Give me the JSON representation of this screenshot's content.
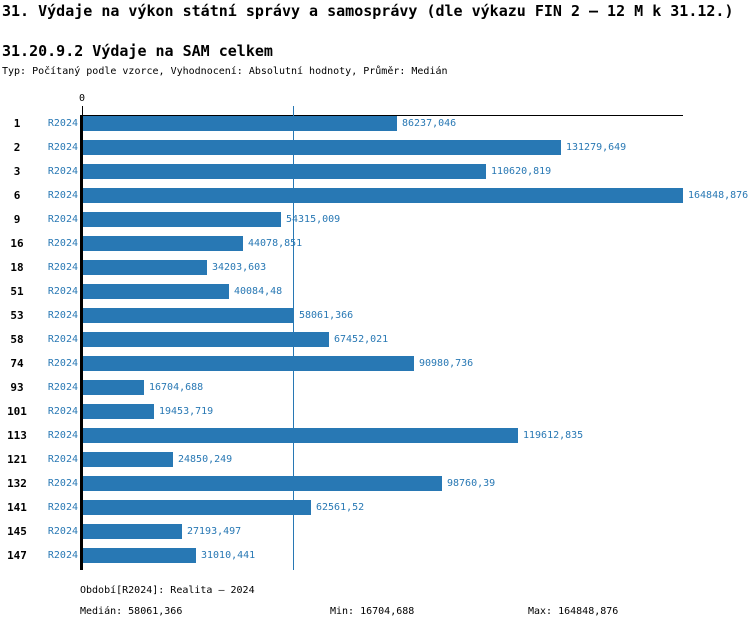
{
  "header": {
    "title": "31. Výdaje na výkon státní správy a samosprávy (dle výkazu FIN 2 – 12 M k 31.12.)",
    "subtitle": "31.20.9.2 Výdaje na SAM celkem",
    "type_line": "Typ: Počítaný podle vzorce, Vyhodnocení: Absolutní hodnoty, Průměr: Medián"
  },
  "chart_data": {
    "type": "bar",
    "orientation": "horizontal",
    "title": "31.20.9.2 Výdaje na SAM celkem",
    "xlabel": "",
    "ylabel": "",
    "xlim": [
      0,
      164848.876
    ],
    "axis_zero_label": "0",
    "grid": false,
    "legend_position": "none",
    "bar_color": "#2878b4",
    "label_color": "#2878b4",
    "median_line_color": "#2878b4",
    "median_value": 58061.366,
    "series_name": "R2024",
    "categories": [
      "1",
      "2",
      "3",
      "6",
      "9",
      "16",
      "18",
      "51",
      "53",
      "58",
      "74",
      "93",
      "101",
      "113",
      "121",
      "132",
      "141",
      "145",
      "147"
    ],
    "values": [
      86237.046,
      131279.649,
      110620.819,
      164848.876,
      54315.009,
      44078.851,
      34203.603,
      40084.48,
      58061.366,
      67452.021,
      90980.736,
      16704.688,
      19453.719,
      119612.835,
      24850.249,
      98760.39,
      62561.52,
      27193.497,
      31010.441
    ],
    "rows": [
      {
        "category": "1",
        "series": "R2024",
        "value": 86237.046,
        "value_label": "86237,046"
      },
      {
        "category": "2",
        "series": "R2024",
        "value": 131279.649,
        "value_label": "131279,649"
      },
      {
        "category": "3",
        "series": "R2024",
        "value": 110620.819,
        "value_label": "110620,819"
      },
      {
        "category": "6",
        "series": "R2024",
        "value": 164848.876,
        "value_label": "164848,876"
      },
      {
        "category": "9",
        "series": "R2024",
        "value": 54315.009,
        "value_label": "54315,009"
      },
      {
        "category": "16",
        "series": "R2024",
        "value": 44078.851,
        "value_label": "44078,851"
      },
      {
        "category": "18",
        "series": "R2024",
        "value": 34203.603,
        "value_label": "34203,603"
      },
      {
        "category": "51",
        "series": "R2024",
        "value": 40084.48,
        "value_label": "40084,48"
      },
      {
        "category": "53",
        "series": "R2024",
        "value": 58061.366,
        "value_label": "58061,366"
      },
      {
        "category": "58",
        "series": "R2024",
        "value": 67452.021,
        "value_label": "67452,021"
      },
      {
        "category": "74",
        "series": "R2024",
        "value": 90980.736,
        "value_label": "90980,736"
      },
      {
        "category": "93",
        "series": "R2024",
        "value": 16704.688,
        "value_label": "16704,688"
      },
      {
        "category": "101",
        "series": "R2024",
        "value": 19453.719,
        "value_label": "19453,719"
      },
      {
        "category": "113",
        "series": "R2024",
        "value": 119612.835,
        "value_label": "119612,835"
      },
      {
        "category": "121",
        "series": "R2024",
        "value": 24850.249,
        "value_label": "24850,249"
      },
      {
        "category": "132",
        "series": "R2024",
        "value": 98760.39,
        "value_label": "98760,39"
      },
      {
        "category": "141",
        "series": "R2024",
        "value": 62561.52,
        "value_label": "62561,52"
      },
      {
        "category": "145",
        "series": "R2024",
        "value": 27193.497,
        "value_label": "27193,497"
      },
      {
        "category": "147",
        "series": "R2024",
        "value": 31010.441,
        "value_label": "31010,441"
      }
    ],
    "stats": {
      "median": 58061.366,
      "min": 16704.688,
      "max": 164848.876
    }
  },
  "footer": {
    "period_label": "Období[R2024]: Realita – 2024",
    "median_label": "Medián: 58061,366",
    "min_label": "Min: 16704,688",
    "max_label": "Max: 164848,876"
  }
}
